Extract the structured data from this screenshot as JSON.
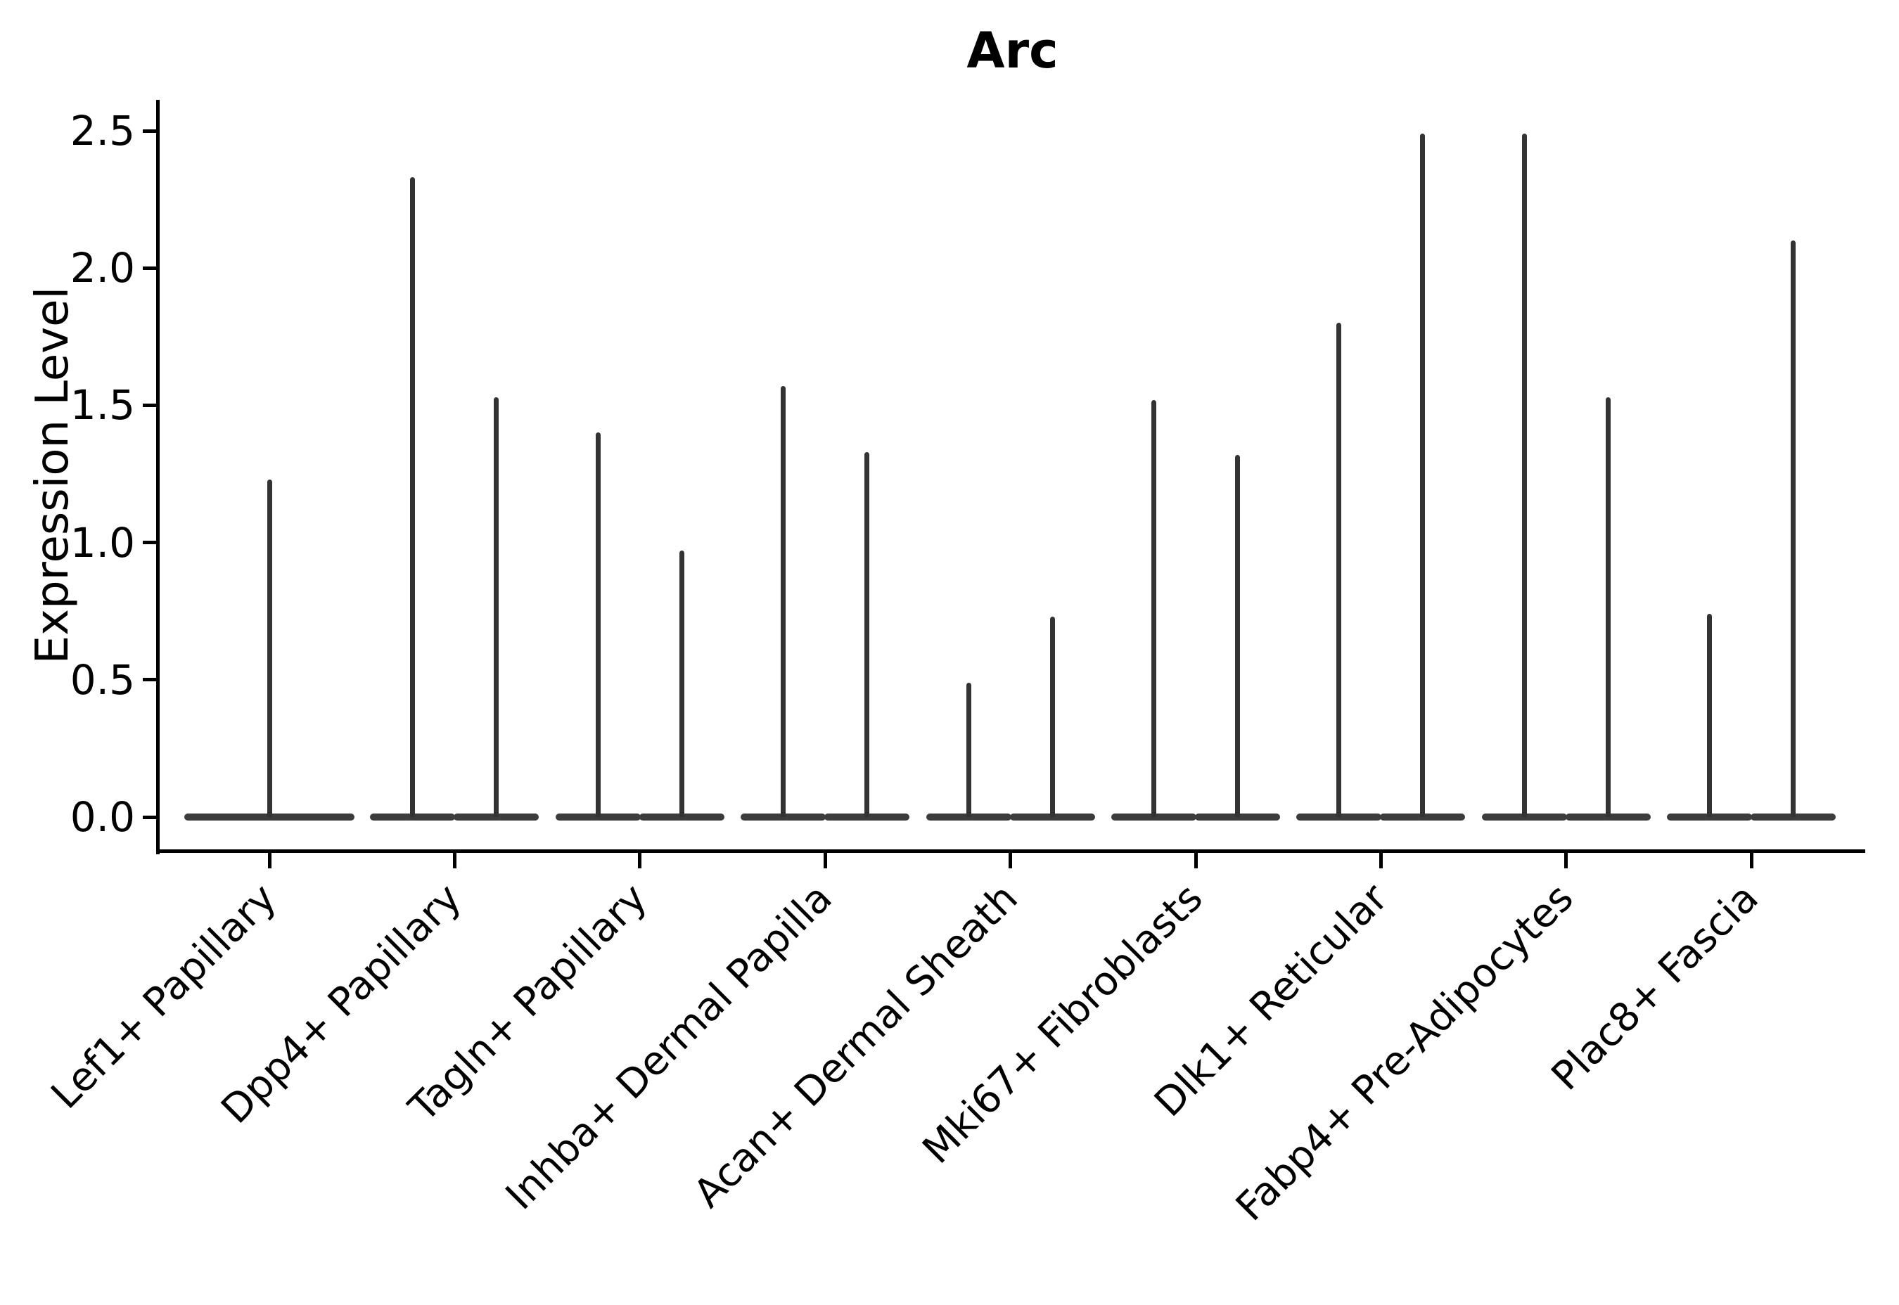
{
  "chart_data": {
    "type": "violin",
    "title": "Arc",
    "xlabel": "",
    "ylabel": "Expression Level",
    "yticks": [
      "0.0",
      "0.5",
      "1.0",
      "1.5",
      "2.0",
      "2.5"
    ],
    "ylim": [
      -0.12,
      2.61
    ],
    "grid": false,
    "legend": null,
    "baseline_value": 0,
    "description": "Each violin is collapsed into a wide flat body at expression 0 with a thin vertical density spike reaching the maximum expression value; categories 2-9 contain two side-by-side violins, category 1 contains one centered violin.",
    "categories": [
      "Lef1+ Papillary",
      "Dpp4+ Papillary",
      "Tagln+ Papillary",
      "Inhba+ Dermal Papilla",
      "Acan+ Dermal Sheath",
      "Mki67+ Fibroblasts",
      "Dlk1+ Reticular",
      "Fabp4+ Pre-Adipocytes",
      "Plac8+ Fascia"
    ],
    "violins": [
      {
        "category": "Lef1+ Papillary",
        "spikes": [
          {
            "position": "center",
            "max": 1.23
          }
        ]
      },
      {
        "category": "Dpp4+ Papillary",
        "spikes": [
          {
            "position": "left",
            "max": 2.33
          },
          {
            "position": "right",
            "max": 1.53
          }
        ]
      },
      {
        "category": "Tagln+ Papillary",
        "spikes": [
          {
            "position": "left",
            "max": 1.4
          },
          {
            "position": "right",
            "max": 0.97
          }
        ]
      },
      {
        "category": "Inhba+ Dermal Papilla",
        "spikes": [
          {
            "position": "left",
            "max": 1.57
          },
          {
            "position": "right",
            "max": 1.33
          }
        ]
      },
      {
        "category": "Acan+ Dermal Sheath",
        "spikes": [
          {
            "position": "left",
            "max": 0.49
          },
          {
            "position": "right",
            "max": 0.73
          }
        ]
      },
      {
        "category": "Mki67+ Fibroblasts",
        "spikes": [
          {
            "position": "left",
            "max": 1.52
          },
          {
            "position": "right",
            "max": 1.32
          }
        ]
      },
      {
        "category": "Dlk1+ Reticular",
        "spikes": [
          {
            "position": "left",
            "max": 1.8
          },
          {
            "position": "right",
            "max": 2.49
          }
        ]
      },
      {
        "category": "Fabp4+ Pre-Adipocytes",
        "spikes": [
          {
            "position": "left",
            "max": 2.49
          },
          {
            "position": "right",
            "max": 1.53
          }
        ]
      },
      {
        "category": "Plac8+ Fascia",
        "spikes": [
          {
            "position": "left",
            "max": 0.74
          },
          {
            "position": "right",
            "max": 2.1
          }
        ]
      }
    ],
    "colors": {
      "violin_body": "#3c3c3c",
      "violin_spike": "#333333",
      "axis": "#000000",
      "text": "#000000",
      "background": "#ffffff"
    }
  }
}
